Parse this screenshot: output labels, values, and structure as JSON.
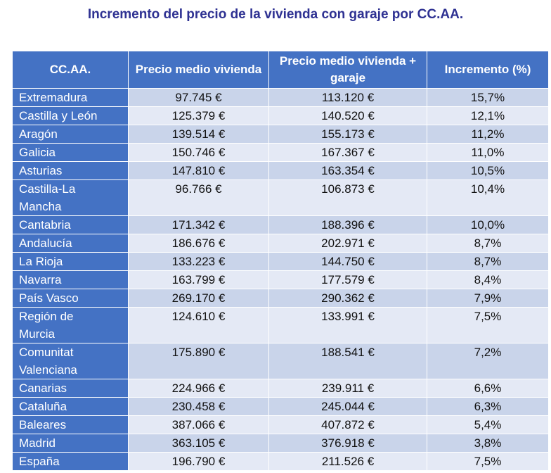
{
  "title": "Incremento del precio de la vivienda con garaje por CC.AA.",
  "table": {
    "header": [
      "CC.AA.",
      "Precio medio vivienda",
      "Precio medio vivienda + garaje",
      "Incremento (%)"
    ],
    "rows": [
      [
        "Extremadura",
        "97.745 €",
        "113.120 €",
        "15,7%"
      ],
      [
        "Castilla y León",
        "125.379 €",
        "140.520 €",
        "12,1%"
      ],
      [
        "Aragón",
        "139.514 €",
        "155.173 €",
        "11,2%"
      ],
      [
        "Galicia",
        "150.746 €",
        "167.367 €",
        "11,0%"
      ],
      [
        "Asturias",
        "147.810 €",
        "163.354 €",
        "10,5%"
      ],
      [
        "Castilla-La Mancha",
        "96.766 €",
        "106.873 €",
        "10,4%"
      ],
      [
        "Cantabria",
        "171.342 €",
        "188.396 €",
        "10,0%"
      ],
      [
        "Andalucía",
        "186.676 €",
        "202.971 €",
        "8,7%"
      ],
      [
        "La Rioja",
        "133.223 €",
        "144.750 €",
        "8,7%"
      ],
      [
        "Navarra",
        "163.799 €",
        "177.579 €",
        "8,4%"
      ],
      [
        "País Vasco",
        "269.170 €",
        "290.362 €",
        "7,9%"
      ],
      [
        "Región de Murcia",
        "124.610 €",
        "133.991 €",
        "7,5%"
      ],
      [
        "Comunitat Valenciana",
        "175.890 €",
        "188.541 €",
        "7,2%"
      ],
      [
        "Canarias",
        "224.966 €",
        "239.911 €",
        "6,6%"
      ],
      [
        "Cataluña",
        "230.458 €",
        "245.044 €",
        "6,3%"
      ],
      [
        "Baleares",
        "387.066 €",
        "407.872 €",
        "5,4%"
      ],
      [
        "Madrid",
        "363.105 €",
        "376.918 €",
        "3,8%"
      ],
      [
        "España",
        "196.790 €",
        "211.526 €",
        "7,5%"
      ]
    ]
  }
}
